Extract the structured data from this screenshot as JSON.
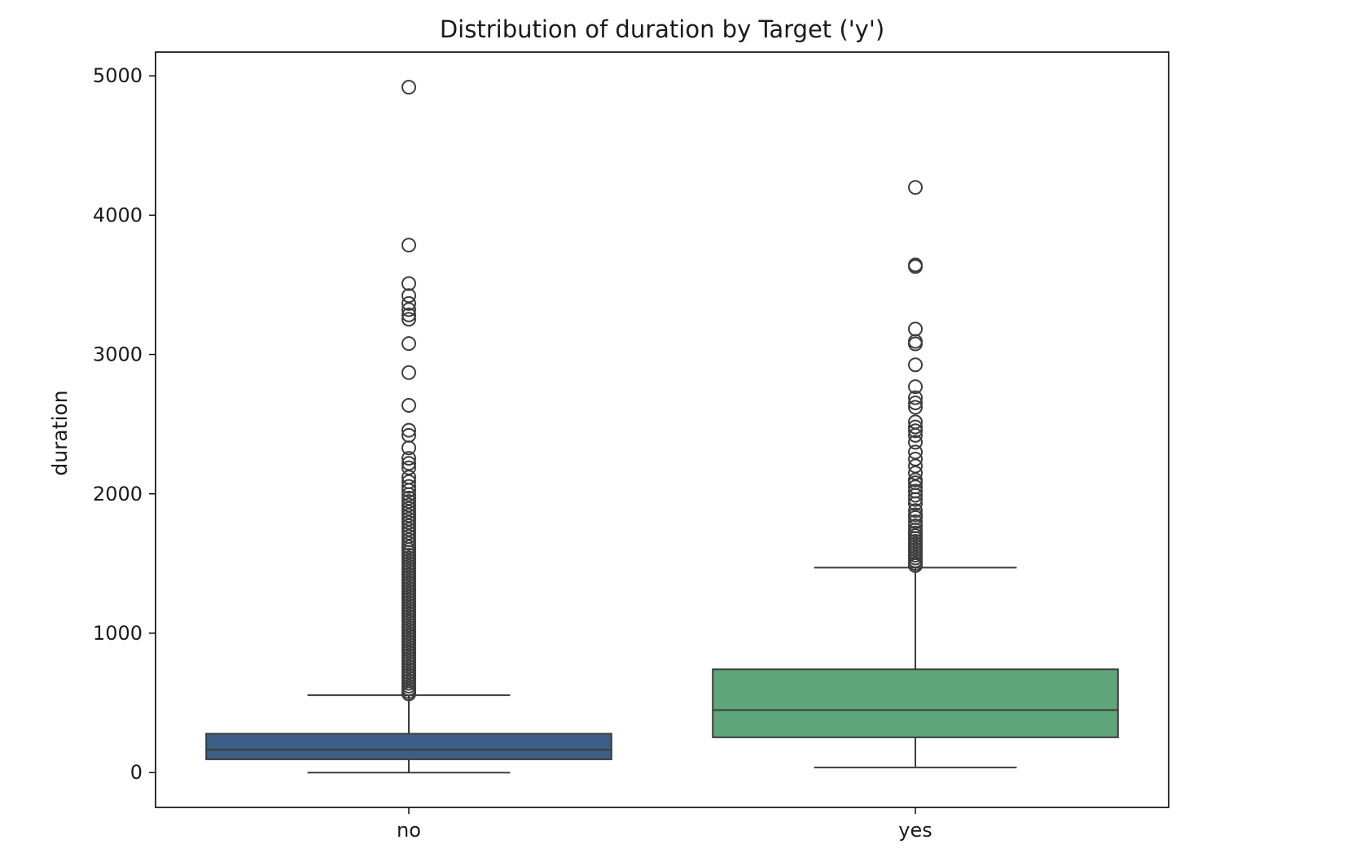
{
  "chart_data": {
    "type": "box",
    "title": "Distribution of duration by Target ('y')",
    "xlabel": "",
    "ylabel": "duration",
    "ylim": [
      -250,
      5170
    ],
    "yticks": [
      0,
      1000,
      2000,
      3000,
      4000,
      5000
    ],
    "grid": false,
    "legend": "none",
    "categories": [
      "no",
      "yes"
    ],
    "boxes": [
      {
        "category": "no",
        "color": "#3b5f86",
        "whisker_low": 0,
        "q1": 95,
        "median": 164,
        "q3": 279,
        "whisker_high": 555,
        "outliers": [
          4918,
          3785,
          3509,
          3422,
          3366,
          3322,
          3284,
          3253,
          3078,
          2870,
          2635,
          2456,
          2420,
          2330,
          2255,
          2219,
          2187,
          2120,
          2087,
          2053,
          2025,
          1995,
          1970,
          1945,
          1920,
          1895,
          1870,
          1845,
          1820,
          1795,
          1770,
          1745,
          1720,
          1695,
          1670,
          1645,
          1620,
          1600,
          1580,
          1560,
          1540,
          1520,
          1500,
          1480,
          1460,
          1440,
          1420,
          1400,
          1380,
          1360,
          1340,
          1320,
          1300,
          1280,
          1260,
          1240,
          1220,
          1200,
          1180,
          1160,
          1140,
          1120,
          1100,
          1080,
          1060,
          1040,
          1020,
          1000,
          980,
          960,
          940,
          920,
          900,
          880,
          860,
          840,
          820,
          800,
          780,
          760,
          740,
          720,
          700,
          680,
          660,
          640,
          620,
          600,
          580,
          565
        ]
      },
      {
        "category": "yes",
        "color": "#5ea57a",
        "whisker_low": 37,
        "q1": 253,
        "median": 449,
        "q3": 741,
        "whisker_high": 1471,
        "outliers": [
          4199,
          3643,
          3631,
          3183,
          3094,
          3076,
          2926,
          2769,
          2690,
          2653,
          2621,
          2516,
          2480,
          2453,
          2420,
          2370,
          2300,
          2250,
          2200,
          2150,
          2100,
          2080,
          2050,
          2020,
          1990,
          1960,
          1930,
          1880,
          1850,
          1830,
          1800,
          1770,
          1740,
          1720,
          1700,
          1680,
          1660,
          1640,
          1620,
          1600,
          1580,
          1560,
          1540,
          1520,
          1500,
          1485
        ]
      }
    ]
  }
}
